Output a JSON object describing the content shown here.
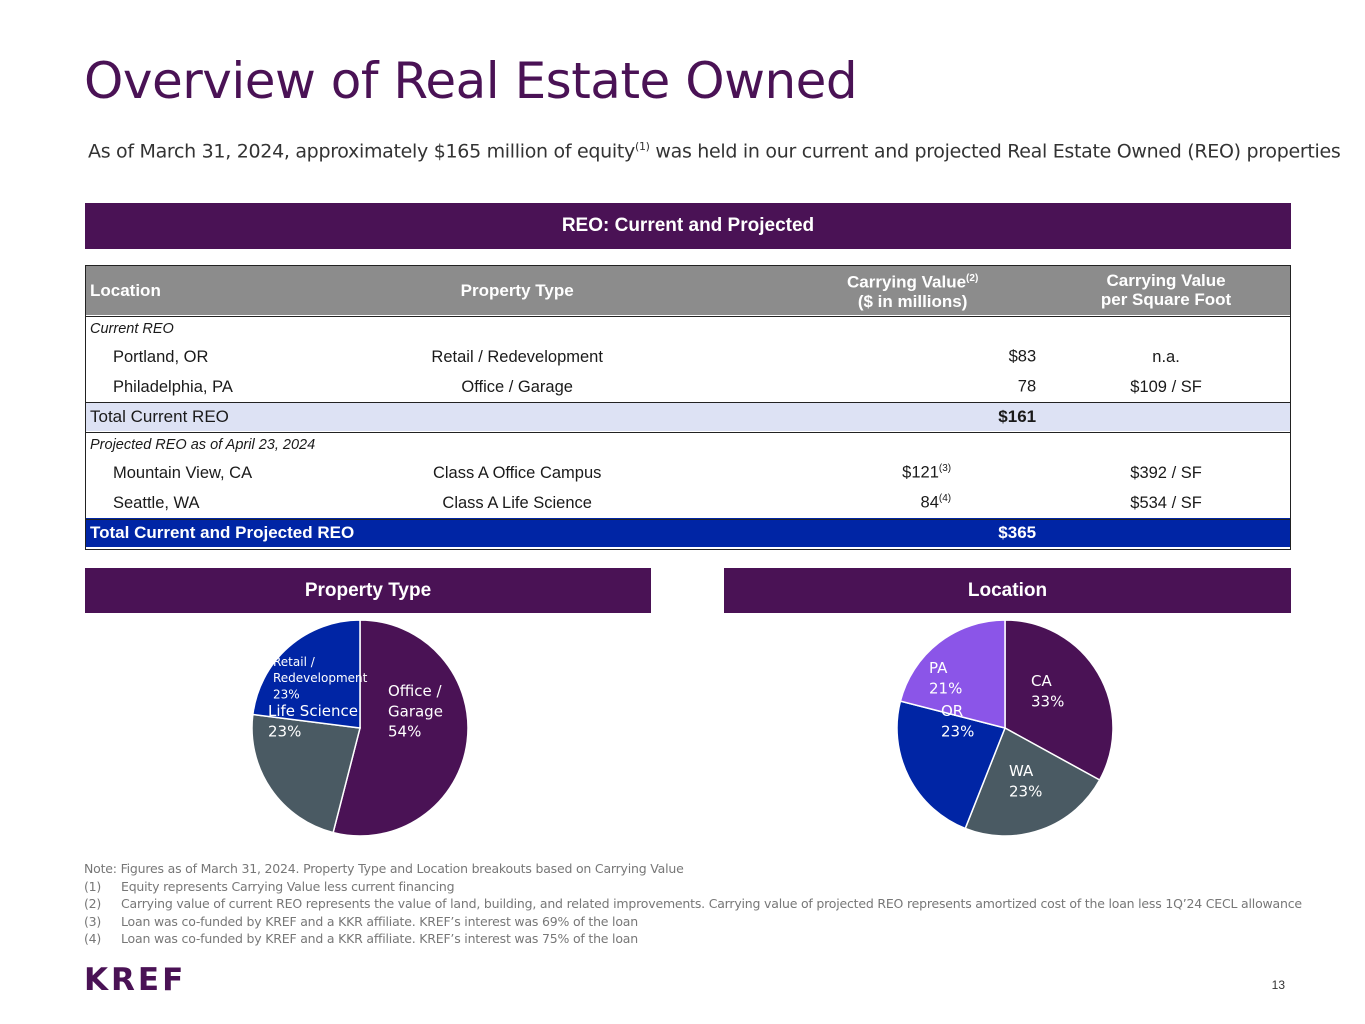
{
  "header": {
    "title": "Overview of Real Estate Owned",
    "subtitle_pre": "As of March 31, 2024, approximately $165 million of equity",
    "subtitle_sup": "(1)",
    "subtitle_post": " was held in our current and projected Real Estate Owned (REO) properties"
  },
  "reo": {
    "band": "REO: Current and Projected",
    "columns": {
      "location": "Location",
      "property_type": "Property Type",
      "carrying_value_line1": "Carrying Value",
      "carrying_value_sup": "(2)",
      "carrying_value_line2": "($ in millions)",
      "per_sf_line1": "Carrying Value",
      "per_sf_line2": "per Square Foot"
    },
    "current_label": "Current REO",
    "current_rows": [
      {
        "location": "Portland, OR",
        "type": "Retail / Redevelopment",
        "value": "$83",
        "sup": "",
        "per_sf": "n.a."
      },
      {
        "location": "Philadelphia, PA",
        "type": "Office / Garage",
        "value": "78",
        "sup": "",
        "per_sf": "$109 / SF"
      }
    ],
    "total_current": {
      "label": "Total Current REO",
      "value": "$161"
    },
    "projected_label": "Projected REO as of April 23, 2024",
    "projected_rows": [
      {
        "location": "Mountain View, CA",
        "type": "Class A Office Campus",
        "value": "$121",
        "sup": "(3)",
        "per_sf": "$392 / SF"
      },
      {
        "location": "Seattle, WA",
        "type": "Class A Life Science",
        "value": "84",
        "sup": "(4)",
        "per_sf": "$534 / SF"
      }
    ],
    "total_all": {
      "label": "Total Current and Projected REO",
      "value": "$365"
    }
  },
  "chart_data": [
    {
      "type": "pie",
      "title": "Property Type",
      "slices": [
        {
          "label": "Office / Garage",
          "value": 54,
          "pct": "54%",
          "color": "#4a1255"
        },
        {
          "label": "Life Science",
          "value": 23,
          "pct": "23%",
          "color": "#4a5a63"
        },
        {
          "label": "Retail / Redevelopment",
          "value": 23,
          "pct": "23%",
          "color": "#0025a5"
        }
      ]
    },
    {
      "type": "pie",
      "title": "Location",
      "slices": [
        {
          "label": "CA",
          "value": 33,
          "pct": "33%",
          "color": "#4a1255"
        },
        {
          "label": "WA",
          "value": 23,
          "pct": "23%",
          "color": "#4a5a63"
        },
        {
          "label": "OR",
          "value": 23,
          "pct": "23%",
          "color": "#0025a5"
        },
        {
          "label": "PA",
          "value": 21,
          "pct": "21%",
          "color": "#8b55e8"
        }
      ]
    }
  ],
  "notes": {
    "intro": "Note: Figures as of March 31, 2024. Property Type and Location breakouts based on Carrying Value",
    "items": [
      {
        "k": "(1)",
        "t": "Equity represents Carrying Value less current financing"
      },
      {
        "k": "(2)",
        "t": "Carrying value of current REO represents the value of land, building, and related improvements. Carrying value of projected REO represents amortized cost of the loan less 1Q’24 CECL allowance"
      },
      {
        "k": "(3)",
        "t": "Loan was co-funded by KREF and a KKR affiliate. KREF’s interest was 69% of the loan"
      },
      {
        "k": "(4)",
        "t": "Loan was co-funded by KREF and a KKR affiliate. KREF’s interest was 75% of the loan"
      }
    ]
  },
  "footer": {
    "logo": "KREF",
    "page": "13"
  }
}
